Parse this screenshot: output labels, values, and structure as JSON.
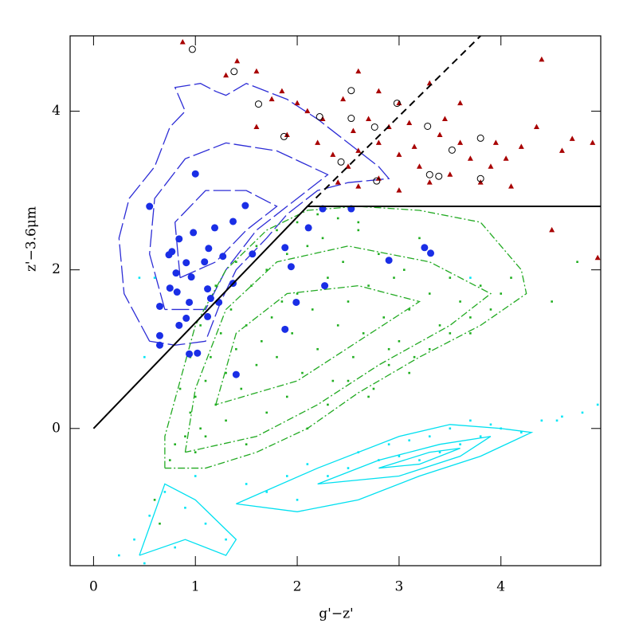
{
  "chart_data": {
    "type": "scatter",
    "xlabel": "g'−z'",
    "ylabel": "z'−3.6μm",
    "xlim": [
      -0.23,
      4.98
    ],
    "ylim": [
      -1.73,
      4.95
    ],
    "xticks": [
      0,
      1,
      2,
      3,
      4
    ],
    "yticks": [
      0,
      2,
      4
    ],
    "series": [
      {
        "marker": "line",
        "line": "long-dash",
        "color": "#2d2dd6",
        "x": [
          0.55,
          0.3,
          0.25,
          0.35,
          0.6,
          0.75,
          0.9,
          0.8,
          1.05,
          1.2,
          1.3,
          1.5,
          1.9,
          2.2,
          2.5,
          2.8,
          2.9,
          2.5,
          2.2,
          1.9,
          1.7,
          1.4,
          1.25,
          1.1,
          0.8,
          0.55
        ],
        "y": [
          1.1,
          1.7,
          2.4,
          2.9,
          3.3,
          3.8,
          4.0,
          4.3,
          4.35,
          4.25,
          4.2,
          4.35,
          4.15,
          3.9,
          3.6,
          3.3,
          3.15,
          3.1,
          3.0,
          2.7,
          2.4,
          2.0,
          1.6,
          1.1,
          1.05,
          1.1
        ]
      },
      {
        "marker": "line",
        "line": "long-dash",
        "color": "#2d2dd6",
        "x": [
          0.7,
          0.55,
          0.6,
          0.9,
          1.3,
          1.8,
          2.3,
          2.0,
          1.6,
          1.3,
          1.1,
          0.7
        ],
        "y": [
          1.5,
          2.2,
          2.9,
          3.4,
          3.6,
          3.5,
          3.2,
          2.9,
          2.5,
          2.0,
          1.5,
          1.5
        ]
      },
      {
        "marker": "line",
        "line": "long-dash",
        "color": "#2d2dd6",
        "x": [
          0.85,
          0.8,
          1.1,
          1.5,
          1.8,
          1.5,
          1.2,
          0.85
        ],
        "y": [
          1.9,
          2.6,
          3.0,
          3.0,
          2.8,
          2.5,
          2.1,
          1.9
        ]
      },
      {
        "marker": "line",
        "line": "dashdot",
        "color": "#22aa22",
        "x": [
          0.7,
          0.7,
          0.85,
          1.0,
          1.3,
          1.7,
          2.1,
          2.6,
          3.2,
          3.8,
          4.2,
          4.25,
          3.8,
          3.2,
          2.6,
          2.1,
          1.6,
          1.1,
          0.7
        ],
        "y": [
          -0.5,
          -0.1,
          0.6,
          1.3,
          2.0,
          2.5,
          2.75,
          2.8,
          2.75,
          2.6,
          2.0,
          1.7,
          1.3,
          0.9,
          0.45,
          0.0,
          -0.3,
          -0.5,
          -0.5
        ]
      },
      {
        "marker": "line",
        "line": "dashdot",
        "color": "#22aa22",
        "x": [
          0.9,
          1.0,
          1.3,
          1.8,
          2.5,
          3.3,
          3.9,
          3.5,
          2.8,
          2.2,
          1.6,
          0.9
        ],
        "y": [
          -0.3,
          0.5,
          1.5,
          2.1,
          2.3,
          2.1,
          1.7,
          1.3,
          0.8,
          0.3,
          -0.1,
          -0.3
        ]
      },
      {
        "marker": "line",
        "line": "dashdot",
        "color": "#22aa22",
        "x": [
          1.2,
          1.4,
          1.9,
          2.6,
          3.2,
          2.6,
          2.0,
          1.2
        ],
        "y": [
          0.3,
          1.2,
          1.7,
          1.8,
          1.6,
          1.1,
          0.6,
          0.3
        ]
      },
      {
        "marker": "line",
        "line": "solid",
        "color": "#00e0f0",
        "x": [
          1.4,
          2.2,
          3.0,
          3.5,
          4.0,
          4.3,
          3.8,
          3.2,
          2.6,
          2.0,
          1.4
        ],
        "y": [
          -0.95,
          -0.5,
          -0.1,
          0.05,
          0.0,
          -0.05,
          -0.35,
          -0.6,
          -0.9,
          -1.05,
          -0.95
        ]
      },
      {
        "marker": "line",
        "line": "solid",
        "color": "#00e0f0",
        "x": [
          0.45,
          0.7,
          1.0,
          1.4,
          1.3,
          0.9,
          0.45
        ],
        "y": [
          -1.6,
          -0.7,
          -0.9,
          -1.4,
          -1.6,
          -1.4,
          -1.6
        ]
      },
      {
        "marker": "line",
        "line": "solid",
        "color": "#00e0f0",
        "x": [
          2.2,
          2.8,
          3.4,
          3.9,
          3.6,
          3.0,
          2.2
        ],
        "y": [
          -0.7,
          -0.4,
          -0.2,
          -0.1,
          -0.35,
          -0.6,
          -0.7
        ]
      },
      {
        "marker": "line",
        "line": "solid",
        "color": "#00e0f0",
        "x": [
          2.8,
          3.3,
          3.6,
          3.2,
          2.8
        ],
        "y": [
          -0.5,
          -0.3,
          -0.25,
          -0.45,
          -0.5
        ]
      },
      {
        "marker": "dot",
        "color": "#1fae1f",
        "x": [
          0.75,
          0.8,
          0.9,
          0.95,
          1.0,
          1.05,
          1.1,
          1.15,
          1.2,
          1.25,
          1.3,
          1.35,
          1.4,
          1.45,
          1.5,
          1.55,
          1.6,
          1.65,
          1.7,
          1.75,
          1.8,
          1.85,
          1.9,
          1.95,
          2.0,
          2.05,
          2.1,
          2.15,
          2.2,
          2.25,
          2.3,
          2.35,
          2.4,
          2.45,
          2.5,
          2.55,
          2.6,
          2.65,
          2.7,
          2.75,
          2.8,
          2.85,
          2.9,
          2.95,
          3.0,
          3.05,
          3.1,
          3.15,
          3.2,
          3.3,
          3.4,
          3.5,
          3.6,
          3.7,
          3.8,
          3.9,
          4.0,
          4.1,
          1.0,
          1.1,
          1.3,
          1.5,
          1.7,
          1.9,
          2.1,
          2.3,
          2.5,
          2.7,
          2.9,
          3.1,
          3.3,
          3.5,
          3.7,
          1.2,
          1.4,
          1.6,
          1.8,
          2.0,
          2.2,
          2.4,
          2.6,
          0.85,
          0.95,
          1.05,
          4.5,
          4.75,
          0.6,
          0.65
        ],
        "y": [
          -0.4,
          -0.2,
          -0.1,
          0.2,
          0.4,
          0.0,
          0.6,
          0.9,
          0.3,
          1.2,
          0.7,
          1.5,
          1.0,
          0.5,
          1.3,
          1.8,
          0.8,
          1.1,
          2.0,
          1.4,
          0.9,
          1.6,
          2.2,
          1.2,
          1.7,
          0.7,
          2.3,
          1.5,
          1.0,
          2.4,
          1.9,
          0.6,
          1.3,
          2.1,
          1.6,
          0.9,
          2.5,
          1.2,
          1.8,
          0.5,
          2.2,
          1.4,
          0.8,
          1.9,
          1.1,
          2.0,
          1.5,
          0.9,
          2.4,
          1.7,
          1.3,
          1.9,
          1.6,
          1.2,
          1.8,
          1.5,
          1.7,
          1.9,
          -0.3,
          -0.1,
          0.1,
          -0.2,
          0.2,
          0.4,
          0.0,
          0.3,
          0.6,
          0.4,
          1.0,
          0.7,
          1.0,
          1.2,
          1.4,
          1.8,
          2.1,
          2.3,
          2.5,
          2.6,
          2.7,
          2.65,
          2.6,
          0.5,
          0.9,
          1.3,
          1.6,
          2.1,
          -0.9,
          -1.2
        ]
      },
      {
        "marker": "dot",
        "color": "#00e5f5",
        "x": [
          0.4,
          0.5,
          0.55,
          0.7,
          0.8,
          0.9,
          1.0,
          1.1,
          1.3,
          1.5,
          1.7,
          1.9,
          2.0,
          2.1,
          2.3,
          2.5,
          2.6,
          2.8,
          2.9,
          3.0,
          3.1,
          3.2,
          3.3,
          3.4,
          3.5,
          3.6,
          3.7,
          3.8,
          3.9,
          4.0,
          4.2,
          4.4,
          4.6,
          4.8,
          4.95,
          0.25,
          0.45,
          0.5,
          4.55,
          3.7,
          0.6
        ],
        "y": [
          -1.4,
          -1.7,
          -1.1,
          -0.8,
          -1.5,
          -1.0,
          -0.6,
          -1.2,
          -1.4,
          -0.7,
          -0.8,
          -0.6,
          -0.9,
          -0.45,
          -0.6,
          -0.5,
          -0.3,
          -0.4,
          -0.2,
          -0.35,
          -0.15,
          -0.4,
          -0.1,
          -0.3,
          0.0,
          -0.2,
          0.1,
          -0.1,
          0.05,
          0.0,
          -0.05,
          0.1,
          0.15,
          0.2,
          0.3,
          -1.6,
          1.9,
          0.9,
          0.1,
          1.9,
          1.9
        ]
      },
      {
        "marker": "triangle",
        "color": "#a80000",
        "x": [
          0.875,
          1.41,
          1.3,
          1.6,
          1.85,
          2.1,
          2.25,
          2.45,
          2.6,
          2.8,
          3.0,
          3.3,
          3.6,
          4.4,
          4.35,
          4.7,
          4.9,
          4.6,
          4.2,
          3.9,
          3.8,
          3.5,
          3.2,
          3.0,
          2.8,
          2.6,
          2.5,
          2.4,
          2.6,
          2.8,
          3.0,
          3.15,
          3.4,
          3.6,
          3.7,
          3.3,
          2.9,
          2.7,
          3.1,
          4.1,
          4.5,
          4.95,
          1.6,
          1.9,
          2.2,
          2.35,
          3.45,
          3.95,
          4.05,
          2.55,
          2.0,
          1.75
        ],
        "y": [
          4.87,
          4.63,
          4.45,
          4.5,
          4.25,
          4.0,
          3.9,
          4.15,
          4.5,
          4.25,
          4.1,
          4.35,
          4.1,
          4.65,
          3.8,
          3.65,
          3.6,
          3.5,
          3.55,
          3.3,
          3.1,
          3.2,
          3.3,
          3.45,
          3.6,
          3.5,
          3.3,
          3.1,
          3.05,
          3.15,
          3.0,
          3.55,
          3.7,
          3.6,
          3.4,
          3.1,
          3.8,
          3.9,
          3.85,
          3.05,
          2.5,
          2.15,
          3.8,
          3.7,
          3.6,
          3.45,
          3.9,
          3.6,
          3.4,
          3.75,
          4.1,
          4.15
        ]
      },
      {
        "marker": "open-circle",
        "color": "#000000",
        "x": [
          0.97,
          1.38,
          1.62,
          2.22,
          2.53,
          2.53,
          2.98,
          2.76,
          3.28,
          3.52,
          3.8,
          2.43,
          2.78,
          3.3,
          3.39,
          3.8,
          1.87
        ],
        "y": [
          4.78,
          4.5,
          4.09,
          3.93,
          3.91,
          4.26,
          4.1,
          3.8,
          3.81,
          3.51,
          3.66,
          3.36,
          3.12,
          3.2,
          3.18,
          3.15,
          3.68
        ]
      },
      {
        "marker": "circle",
        "color": "#1a2ee6",
        "x": [
          1.0,
          0.55,
          1.49,
          1.37,
          1.19,
          0.84,
          0.98,
          0.77,
          1.13,
          1.09,
          0.91,
          0.74,
          1.27,
          1.56,
          0.81,
          0.96,
          0.75,
          0.82,
          0.65,
          1.12,
          1.15,
          1.23,
          1.37,
          0.94,
          0.91,
          1.12,
          0.84,
          0.65,
          0.65,
          0.94,
          1.02,
          1.88,
          1.94,
          2.11,
          2.25,
          2.53,
          1.99,
          1.88,
          2.27,
          2.9,
          3.25,
          3.31,
          1.4
        ],
        "y": [
          3.21,
          2.8,
          2.81,
          2.61,
          2.53,
          2.39,
          2.47,
          2.23,
          2.27,
          2.1,
          2.09,
          2.19,
          2.17,
          2.2,
          1.96,
          1.91,
          1.77,
          1.72,
          1.54,
          1.76,
          1.64,
          1.59,
          1.83,
          1.59,
          1.39,
          1.41,
          1.3,
          1.17,
          1.05,
          0.94,
          0.95,
          2.28,
          2.04,
          2.53,
          2.77,
          2.77,
          1.59,
          1.25,
          1.8,
          2.12,
          2.28,
          2.21,
          0.68
        ]
      },
      {
        "marker": "line",
        "line": "solid",
        "color": "#000000",
        "x": [
          0,
          2.1,
          4.98
        ],
        "y": [
          0,
          2.8,
          2.8
        ]
      },
      {
        "marker": "line",
        "line": "dashed",
        "color": "#000000",
        "x": [
          2.1,
          3.8
        ],
        "y": [
          2.8,
          4.95
        ]
      }
    ]
  }
}
